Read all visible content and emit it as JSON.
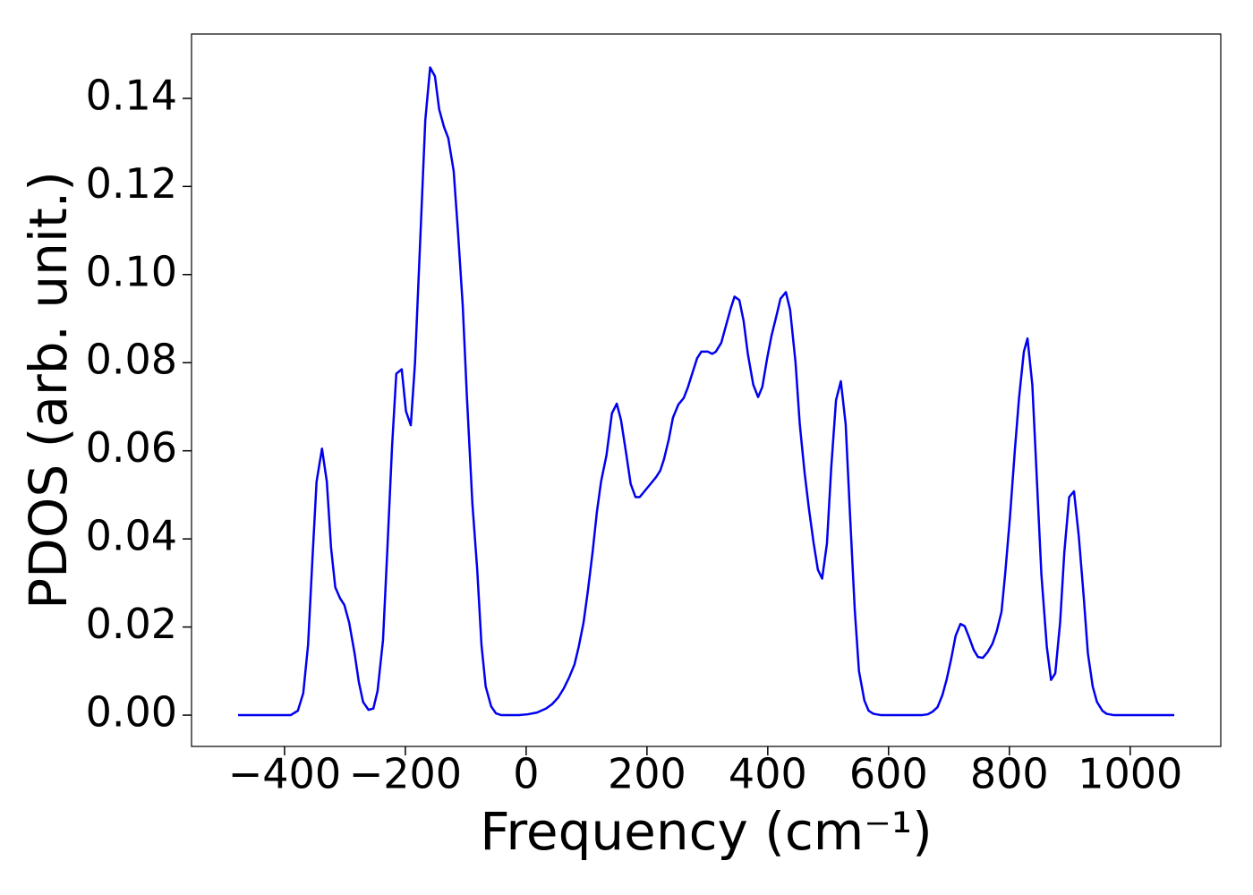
{
  "chart_data": {
    "type": "line",
    "xlabel": "Frequency (cm⁻¹)",
    "ylabel": "PDOS (arb. unit.)",
    "xlim": [
      -554,
      1150
    ],
    "ylim": [
      -0.0071,
      0.1546
    ],
    "xticks": [
      {
        "value": -400,
        "label": "−400"
      },
      {
        "value": -200,
        "label": "−200"
      },
      0,
      200,
      400,
      600,
      800,
      1000
    ],
    "yticks": [
      {
        "value": 0,
        "label": "0.00"
      },
      {
        "value": 0.02,
        "label": "0.02"
      },
      {
        "value": 0.04,
        "label": "0.04"
      },
      {
        "value": 0.06,
        "label": "0.06"
      },
      {
        "value": 0.08,
        "label": "0.08"
      },
      {
        "value": 0.1,
        "label": "0.10"
      },
      {
        "value": 0.12,
        "label": "0.12"
      },
      {
        "value": 0.14,
        "label": "0.14"
      }
    ],
    "grid": false,
    "series": [
      {
        "color": "#0000ee",
        "x": [
          -477,
          -390,
          -378,
          -369,
          -361,
          -354,
          -347,
          -338,
          -330,
          -323,
          -316,
          -308,
          -301,
          -293,
          -284,
          -277,
          -270,
          -261,
          -253,
          -246,
          -237,
          -230,
          -222,
          -215,
          -206,
          -199,
          -191,
          -184,
          -175,
          -167,
          -159,
          -151,
          -144,
          -136,
          -129,
          -120,
          -113,
          -105,
          -98,
          -89,
          -81,
          -74,
          -67,
          -58,
          -50,
          -41,
          -12,
          3,
          18,
          33,
          43,
          53,
          62,
          71,
          80,
          87,
          95,
          102,
          110,
          117,
          124,
          133,
          142,
          150,
          157,
          166,
          173,
          181,
          188,
          197,
          206,
          215,
          222,
          228,
          236,
          243,
          252,
          261,
          268,
          276,
          283,
          290,
          301,
          308,
          314,
          323,
          330,
          338,
          345,
          353,
          360,
          367,
          376,
          384,
          391,
          399,
          406,
          415,
          421,
          430,
          437,
          446,
          453,
          461,
          468,
          476,
          483,
          490,
          498,
          505,
          513,
          521,
          529,
          536,
          544,
          551,
          560,
          567,
          575,
          588,
          655,
          665,
          673,
          681,
          689,
          696,
          704,
          711,
          719,
          726,
          733,
          741,
          748,
          756,
          764,
          772,
          779,
          787,
          793,
          801,
          809,
          816,
          824,
          830,
          838,
          845,
          853,
          862,
          869,
          876,
          884,
          891,
          899,
          907,
          915,
          923,
          930,
          938,
          945,
          954,
          961,
          973,
          1073
        ],
        "values": [
          0,
          0,
          0.001,
          0.005,
          0.016,
          0.035,
          0.053,
          0.0605,
          0.053,
          0.038,
          0.029,
          0.0265,
          0.025,
          0.021,
          0.014,
          0.0075,
          0.003,
          0.0012,
          0.0015,
          0.0055,
          0.017,
          0.037,
          0.061,
          0.0775,
          0.0785,
          0.069,
          0.0658,
          0.08,
          0.109,
          0.135,
          0.147,
          0.145,
          0.1375,
          0.1335,
          0.131,
          0.1235,
          0.11,
          0.093,
          0.072,
          0.048,
          0.033,
          0.016,
          0.0065,
          0.002,
          0.0004,
          0,
          0,
          0.0002,
          0.0006,
          0.0015,
          0.0025,
          0.004,
          0.006,
          0.0085,
          0.0115,
          0.0155,
          0.021,
          0.028,
          0.037,
          0.046,
          0.053,
          0.059,
          0.0685,
          0.0707,
          0.067,
          0.059,
          0.0525,
          0.0495,
          0.0495,
          0.051,
          0.0525,
          0.054,
          0.0555,
          0.058,
          0.0625,
          0.0675,
          0.0705,
          0.072,
          0.0745,
          0.078,
          0.081,
          0.0825,
          0.0825,
          0.082,
          0.0825,
          0.0845,
          0.088,
          0.092,
          0.095,
          0.0942,
          0.0895,
          0.082,
          0.075,
          0.0722,
          0.0745,
          0.081,
          0.086,
          0.091,
          0.0945,
          0.096,
          0.092,
          0.08,
          0.066,
          0.055,
          0.047,
          0.039,
          0.033,
          0.031,
          0.039,
          0.056,
          0.0715,
          0.0758,
          0.066,
          0.046,
          0.024,
          0.01,
          0.0033,
          0.001,
          0.0003,
          0,
          0,
          0.0002,
          0.0008,
          0.0018,
          0.0045,
          0.008,
          0.013,
          0.018,
          0.0207,
          0.0202,
          0.0178,
          0.0148,
          0.0132,
          0.013,
          0.0143,
          0.0162,
          0.019,
          0.0235,
          0.032,
          0.045,
          0.06,
          0.072,
          0.0825,
          0.0855,
          0.075,
          0.055,
          0.032,
          0.0155,
          0.008,
          0.0095,
          0.021,
          0.037,
          0.0495,
          0.0508,
          0.0405,
          0.027,
          0.014,
          0.0065,
          0.003,
          0.001,
          0.0003,
          0,
          0
        ]
      }
    ]
  }
}
